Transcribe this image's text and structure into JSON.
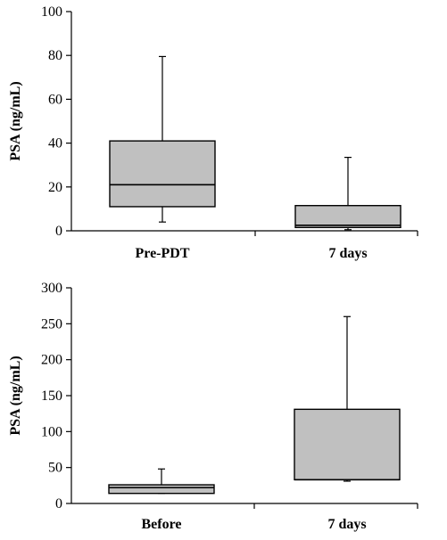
{
  "colors": {
    "box_fill": "#c0c0c0",
    "stroke": "#000000",
    "background": "#ffffff"
  },
  "chart_data": [
    {
      "type": "box",
      "ylabel": "PSA (ng/mL)",
      "ylim": [
        0,
        100
      ],
      "yticks": [
        "0",
        "20",
        "40",
        "60",
        "80",
        "100"
      ],
      "categories": [
        "Pre-PDT",
        "7 days"
      ],
      "boxes": [
        {
          "label": "Pre-PDT",
          "min": 4,
          "q1": 11,
          "median": 21,
          "q3": 41,
          "max": 79.5
        },
        {
          "label": "7 days",
          "min": 0.5,
          "q1": 1.5,
          "median": 2.5,
          "q3": 11.5,
          "max": 33.5
        }
      ]
    },
    {
      "type": "box",
      "ylabel": "PSA (ng/mL)",
      "ylim": [
        0,
        300
      ],
      "yticks": [
        "0",
        "50",
        "100",
        "150",
        "200",
        "250",
        "300"
      ],
      "categories": [
        "Before",
        "7 days"
      ],
      "boxes": [
        {
          "label": "Before",
          "min": 14,
          "q1": 14,
          "median": 22,
          "q3": 26,
          "max": 48
        },
        {
          "label": "7 days",
          "min": 31,
          "q1": 33,
          "median": 33,
          "q3": 131,
          "max": 260
        }
      ]
    }
  ]
}
